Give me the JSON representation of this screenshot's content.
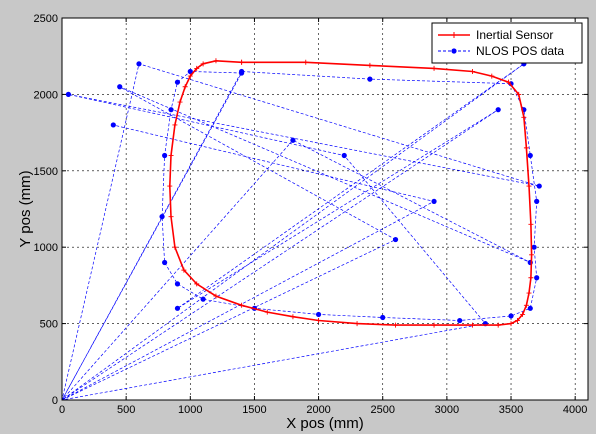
{
  "chart_data": {
    "type": "line",
    "title": "",
    "xlabel": "X pos (mm)",
    "ylabel": "Y pos (mm)",
    "xlim": [
      0,
      4100
    ],
    "ylim": [
      0,
      2500
    ],
    "xticks": [
      0,
      500,
      1000,
      1500,
      2000,
      2500,
      3000,
      3500,
      4000
    ],
    "yticks": [
      0,
      500,
      1000,
      1500,
      2000,
      2500
    ],
    "xtick_labels": [
      "0",
      "500",
      "1000",
      "1500",
      "2000",
      "2500",
      "3000",
      "3500",
      "4000"
    ],
    "ytick_labels": [
      "0",
      "500",
      "1000",
      "1500",
      "2000",
      "2500"
    ],
    "grid": true,
    "legend_position": "top-right",
    "series": [
      {
        "name": "Inertial Sensor",
        "color": "#ff0000",
        "style": "solid line with + markers",
        "x": [
          1400,
          1900,
          2400,
          2900,
          3200,
          3350,
          3480,
          3560,
          3600,
          3620,
          3640,
          3655,
          3660,
          3655,
          3640,
          3620,
          3590,
          3550,
          3500,
          3400,
          3200,
          2900,
          2600,
          2300,
          2000,
          1800,
          1600,
          1400,
          1200,
          1050,
          950,
          880,
          850,
          840,
          850,
          880,
          920,
          960,
          1000,
          1050,
          1100,
          1200,
          1400
        ],
        "y": [
          2210,
          2210,
          2190,
          2170,
          2150,
          2120,
          2080,
          2000,
          1850,
          1650,
          1400,
          1150,
          950,
          800,
          700,
          620,
          560,
          520,
          500,
          490,
          490,
          490,
          490,
          500,
          520,
          545,
          575,
          620,
          680,
          760,
          850,
          1000,
          1200,
          1400,
          1600,
          1800,
          1950,
          2050,
          2120,
          2170,
          2200,
          2220,
          2210
        ]
      },
      {
        "name": "NLOS POS data",
        "color": "#0000ff",
        "style": "dashed line with dot markers",
        "x": [
          0,
          1400,
          2400,
          3500,
          3600,
          3650,
          3700,
          3680,
          3700,
          3650,
          3500,
          3100,
          2500,
          2000,
          1500,
          1100,
          900,
          800,
          780,
          800,
          850,
          900,
          1000,
          1400,
          0,
          600,
          3720,
          50,
          2200,
          3300,
          0,
          1800,
          3650,
          450,
          2600,
          0,
          3400,
          900,
          3600,
          0,
          2900,
          400
        ],
        "y": [
          0,
          2150,
          2100,
          2070,
          1900,
          1600,
          1300,
          1000,
          800,
          600,
          550,
          520,
          540,
          560,
          600,
          660,
          760,
          900,
          1200,
          1600,
          1900,
          2080,
          2150,
          2140,
          0,
          2200,
          1400,
          2000,
          1600,
          500,
          0,
          1700,
          900,
          2050,
          1050,
          0,
          1900,
          600,
          2200,
          0,
          1300,
          1800
        ]
      }
    ]
  }
}
